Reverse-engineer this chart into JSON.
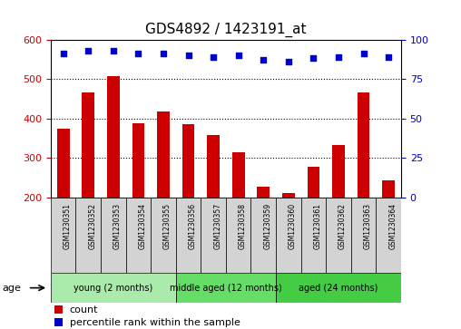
{
  "title": "GDS4892 / 1423191_at",
  "samples": [
    "GSM1230351",
    "GSM1230352",
    "GSM1230353",
    "GSM1230354",
    "GSM1230355",
    "GSM1230356",
    "GSM1230357",
    "GSM1230358",
    "GSM1230359",
    "GSM1230360",
    "GSM1230361",
    "GSM1230362",
    "GSM1230363",
    "GSM1230364"
  ],
  "counts": [
    375,
    465,
    507,
    388,
    418,
    385,
    358,
    315,
    228,
    212,
    278,
    333,
    465,
    243
  ],
  "percentile_ranks": [
    91,
    93,
    93,
    91,
    91,
    90,
    89,
    90,
    87,
    86,
    88,
    89,
    91,
    89
  ],
  "ylim_left": [
    200,
    600
  ],
  "ylim_right": [
    0,
    100
  ],
  "yticks_left": [
    200,
    300,
    400,
    500,
    600
  ],
  "yticks_right": [
    0,
    25,
    50,
    75,
    100
  ],
  "groups": [
    {
      "label": "young (2 months)",
      "start": 0,
      "end": 5,
      "color": "#aaeaaa"
    },
    {
      "label": "middle aged (12 months)",
      "start": 5,
      "end": 9,
      "color": "#66dd66"
    },
    {
      "label": "aged (24 months)",
      "start": 9,
      "end": 14,
      "color": "#44cc44"
    }
  ],
  "bar_color": "#CC0000",
  "dot_color": "#0000CC",
  "bar_width": 0.5,
  "sample_box_color": "#D3D3D3",
  "age_label": "age",
  "legend_count_label": "count",
  "legend_percentile_label": "percentile rank within the sample",
  "title_fontsize": 11,
  "tick_fontsize": 8,
  "label_fontsize": 8
}
